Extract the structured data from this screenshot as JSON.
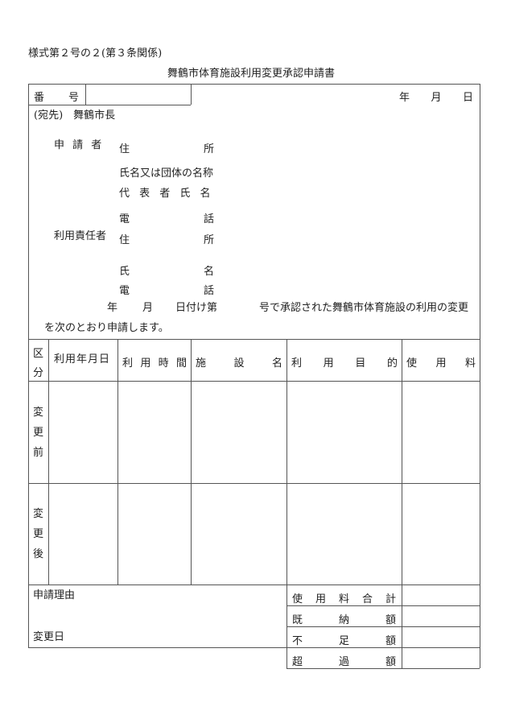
{
  "form_number": "様式第２号の２(第３条関係)",
  "title": "舞鶴市体育施設利用変更承認申請書",
  "header": {
    "number_label": [
      "番",
      "号"
    ],
    "number_value": "",
    "date_labels": [
      "年",
      "月",
      "日"
    ]
  },
  "addressee": "(宛先)　舞鶴市長",
  "applicant": {
    "label": "申 請 者",
    "address": [
      "住",
      "所"
    ],
    "name_org": "氏名又は団体の名称",
    "representative": "代 表 者 氏 名",
    "phone": [
      "電",
      "話"
    ]
  },
  "responsible": {
    "label": "利用責任者",
    "address": [
      "住",
      "所"
    ],
    "name": [
      "氏",
      "名"
    ],
    "phone": [
      "電",
      "話"
    ]
  },
  "statement": {
    "year": "年",
    "month": "月",
    "day_no": "日付け第",
    "rest": "号で承認された舞鶴市体育施設の利用の変更",
    "line2": "を次のとおり申請します。"
  },
  "table": {
    "headers": [
      [
        "区",
        "分"
      ],
      [
        "利用年月日"
      ],
      [
        "利",
        "用",
        "時",
        "間"
      ],
      [
        "施",
        "設",
        "名"
      ],
      [
        "利",
        "用",
        "目",
        "的"
      ],
      [
        "使",
        "用",
        "料"
      ]
    ],
    "rows": [
      {
        "label": [
          "変",
          "更",
          "前"
        ]
      },
      {
        "label": [
          "変",
          "更",
          "後"
        ]
      }
    ]
  },
  "footer": {
    "reason_label": "申請理由",
    "change_date_label": "変更日",
    "fees": [
      [
        "使",
        "用",
        "料",
        "合",
        "計"
      ],
      [
        "既",
        "納",
        "額"
      ],
      [
        "不",
        "足",
        "額"
      ],
      [
        "超",
        "過",
        "額"
      ]
    ]
  }
}
